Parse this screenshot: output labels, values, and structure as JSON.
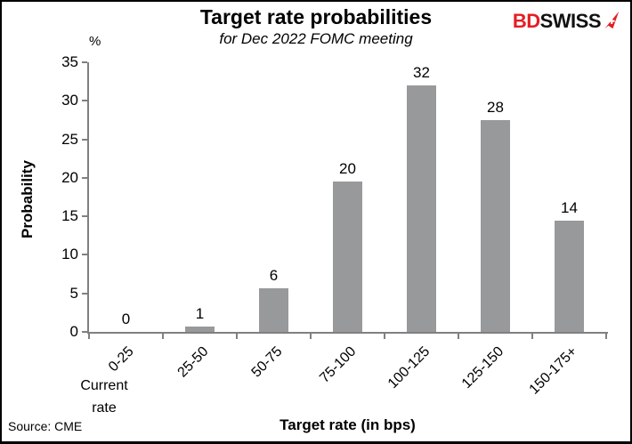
{
  "header": {
    "title": "Target rate probabilities",
    "subtitle": "for Dec 2022 FOMC meeting"
  },
  "logo": {
    "text_bd": "BD",
    "text_swiss": "SWISS",
    "icon": "swiss-arrow-icon"
  },
  "chart_data": {
    "type": "bar",
    "title": "Target rate probabilities",
    "subtitle": "for Dec 2022 FOMC meeting",
    "categories": [
      "0-25",
      "25-50",
      "50-75",
      "75-100",
      "100-125",
      "125-150",
      "150-175+"
    ],
    "values": [
      0,
      1,
      6,
      20,
      32,
      28,
      14
    ],
    "values_precise": [
      0,
      0.7,
      5.7,
      19.5,
      32,
      27.5,
      14.4
    ],
    "bar_labels": [
      "0",
      "1",
      "6",
      "20",
      "32",
      "28",
      "14"
    ],
    "xlabel": "Target rate (in bps)",
    "ylabel": "Probability",
    "y_unit": "%",
    "ylim": [
      0,
      35
    ],
    "yticks": [
      0,
      5,
      10,
      15,
      20,
      25,
      30,
      35
    ],
    "first_category_note": "Current rate",
    "grid": "off",
    "legend": "none"
  },
  "footer": {
    "source": "Source: CME"
  },
  "colors": {
    "bar": "#97999b",
    "axis": "#808080",
    "logo-red": "#e31e24",
    "text": "#000000"
  }
}
